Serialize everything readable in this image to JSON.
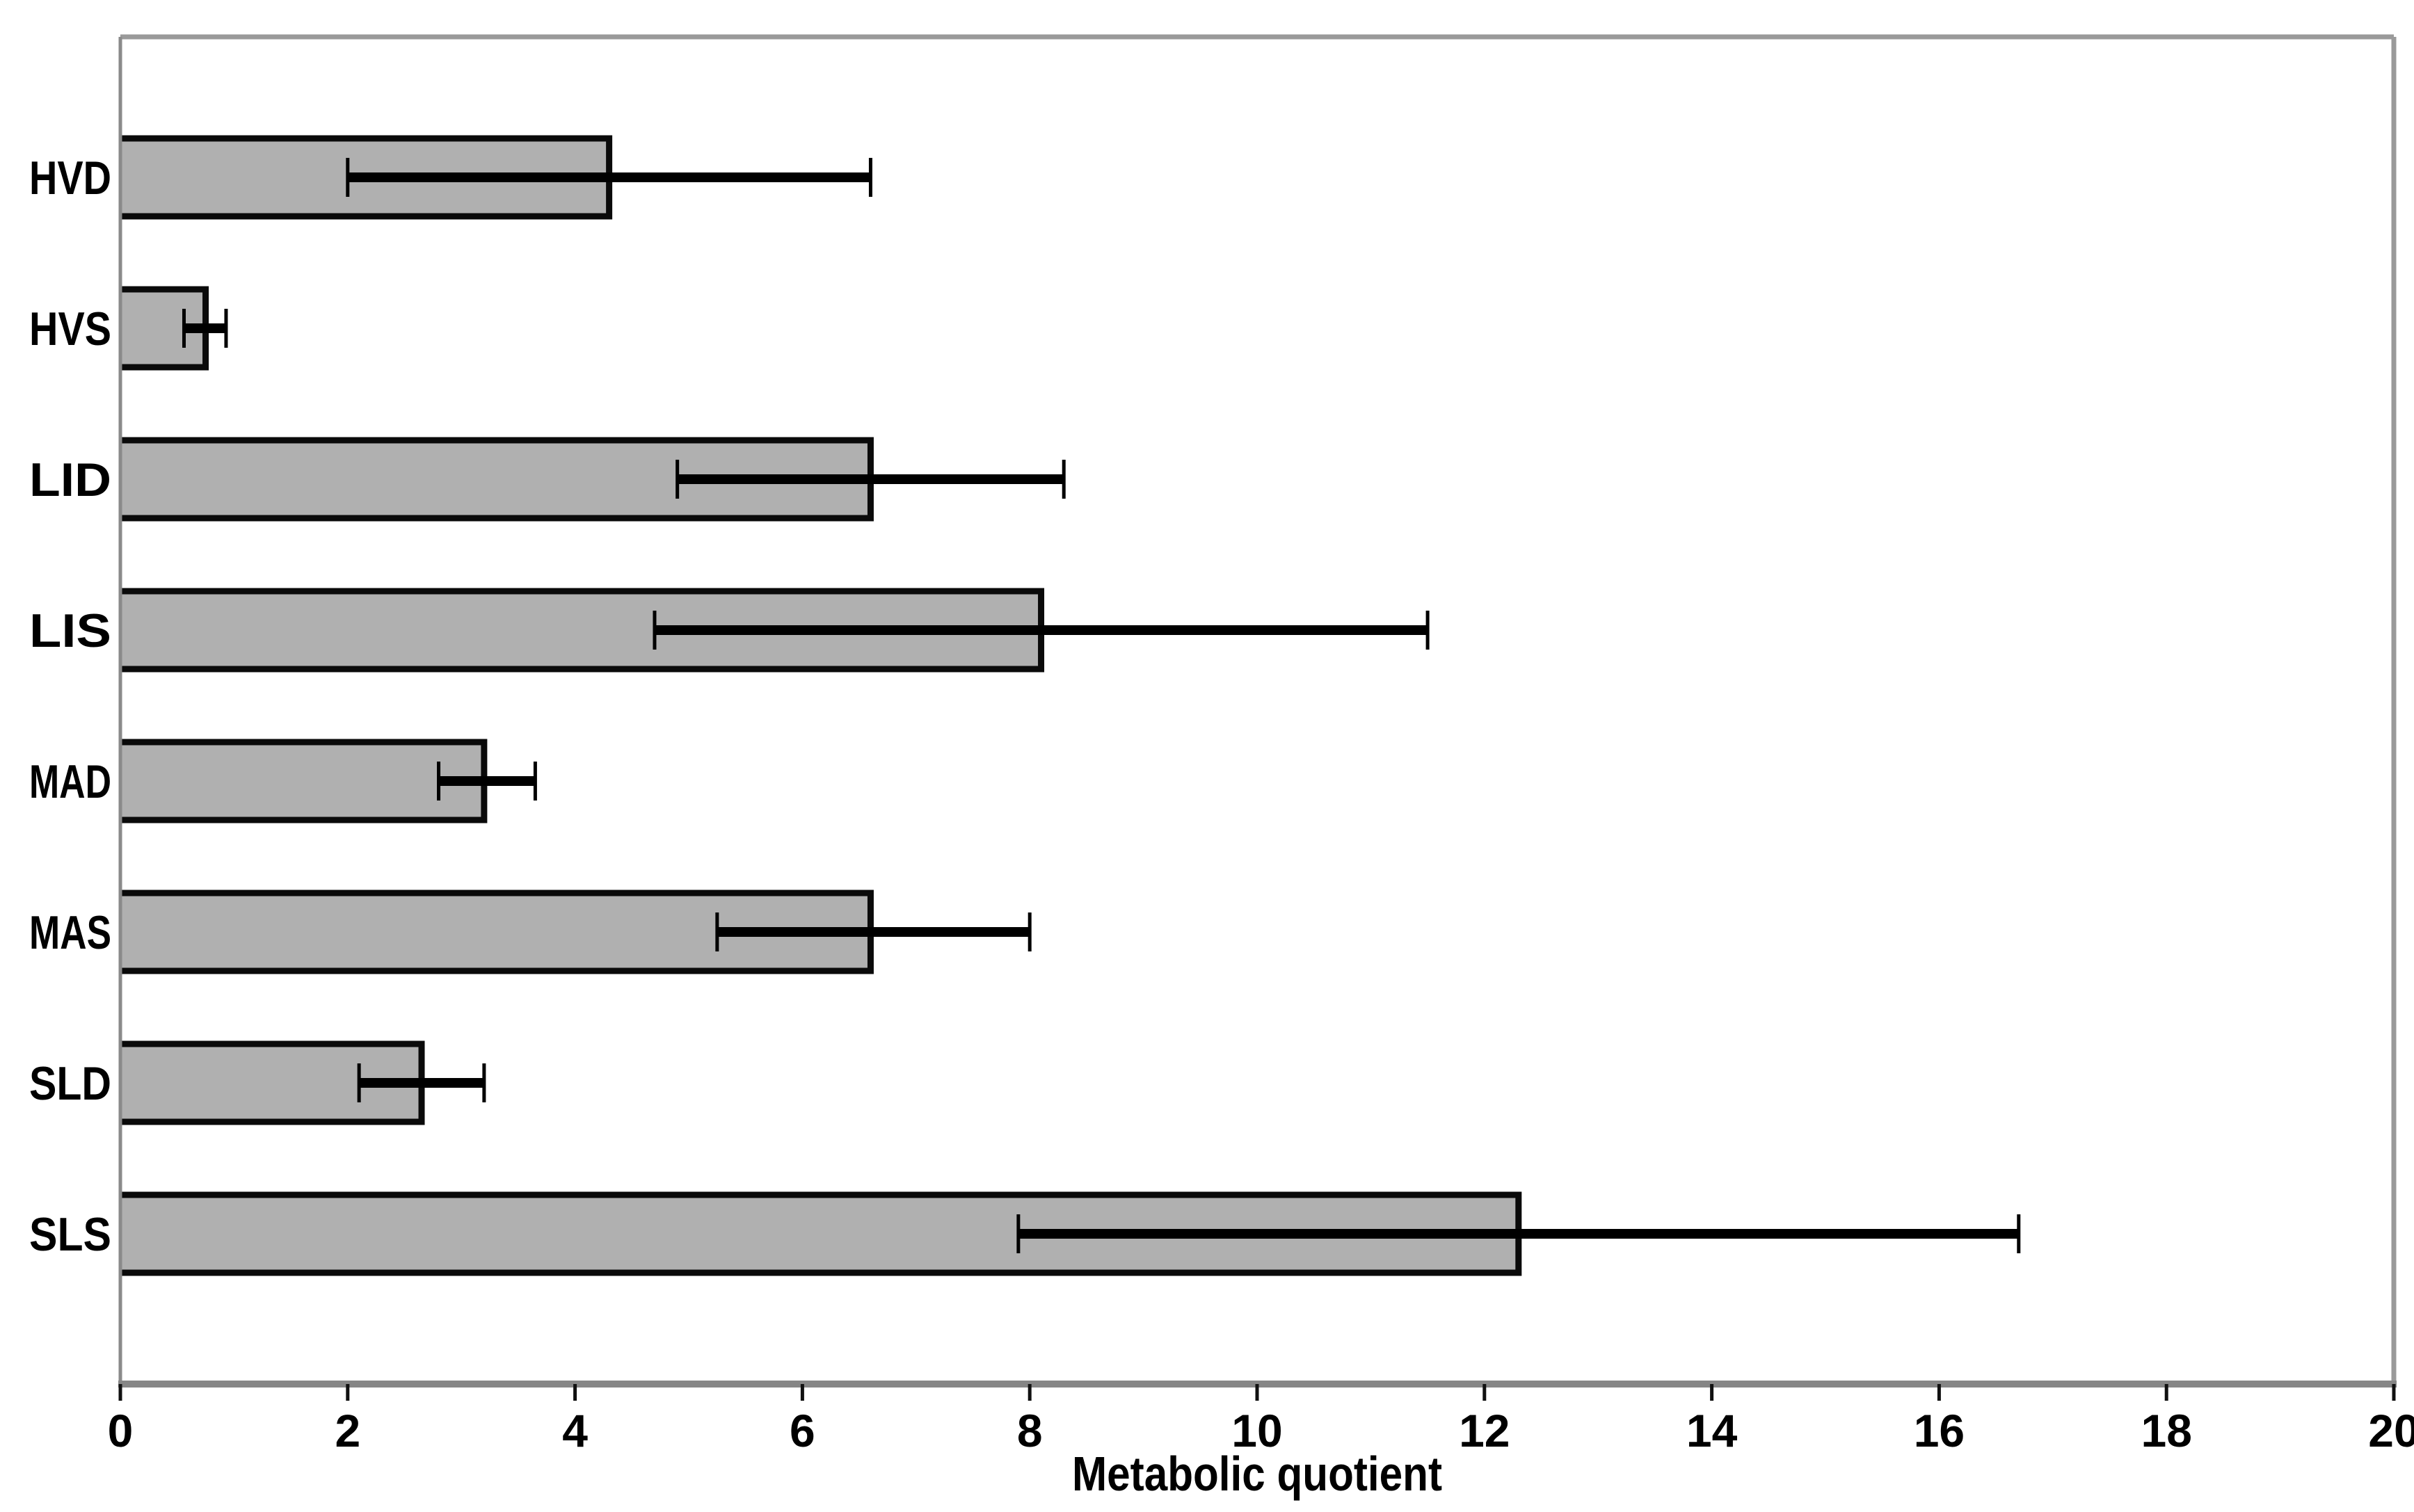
{
  "chart_data": {
    "type": "bar",
    "orientation": "horizontal",
    "title": "",
    "xlabel": "Metabolic quotient",
    "ylabel": "",
    "xlim": [
      0,
      20
    ],
    "xticks": [
      0,
      2,
      4,
      6,
      8,
      10,
      12,
      14,
      16,
      18,
      20
    ],
    "grid": false,
    "legend": null,
    "categories": [
      "HVD",
      "HVS",
      "LID",
      "LIS",
      "MAD",
      "MAS",
      "SLD",
      "SLS"
    ],
    "series": [
      {
        "name": "Metabolic quotient",
        "values": [
          4.3,
          0.75,
          6.6,
          8.1,
          3.2,
          6.6,
          2.65,
          12.3
        ],
        "error_low": [
          2.0,
          0.56,
          4.9,
          4.7,
          2.8,
          5.25,
          2.1,
          7.9
        ],
        "error_high": [
          6.6,
          0.93,
          8.3,
          11.5,
          3.65,
          8.0,
          3.2,
          16.7
        ]
      }
    ],
    "colors": {
      "bar_fill": "#b0b0b0",
      "bar_border": "#0a0a0a",
      "error_bar": "#000000",
      "axis_line": "#868686",
      "plot_border": "#9a9a9a",
      "tick_mark": "#111111",
      "text": "#000000",
      "background": "#ffffff"
    }
  }
}
